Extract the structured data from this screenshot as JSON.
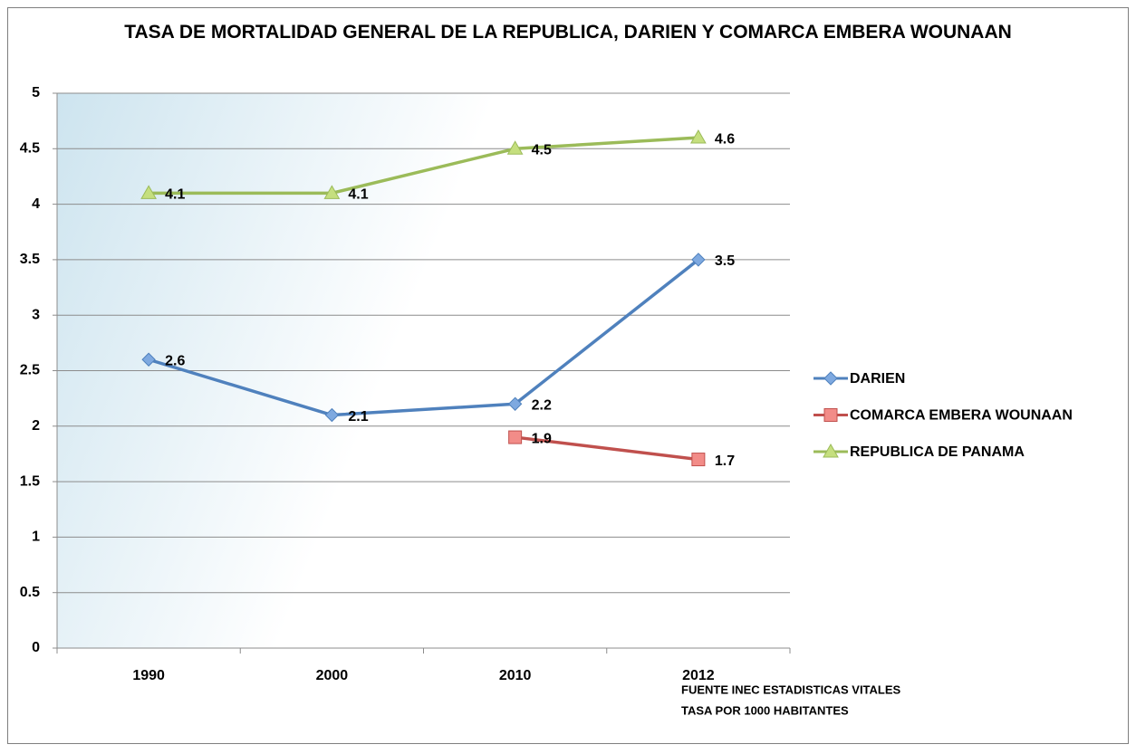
{
  "chart_data": {
    "type": "line",
    "title": "TASA DE MORTALIDAD GENERAL DE LA REPUBLICA, DARIEN Y COMARCA EMBERA WOUNAAN",
    "categories": [
      "1990",
      "2000",
      "2010",
      "2012"
    ],
    "series": [
      {
        "name": "DARIEN",
        "color": "#4f81bd",
        "marker_color": "#7ea9e0",
        "marker": "diamond",
        "values": [
          2.6,
          2.1,
          2.2,
          3.5
        ]
      },
      {
        "name": "COMARCA EMBERA WOUNAAN",
        "color": "#c0504d",
        "marker_color": "#f28c88",
        "marker": "square",
        "values": [
          null,
          null,
          1.9,
          1.7
        ]
      },
      {
        "name": "REPUBLICA DE PANAMA",
        "color": "#9bbb59",
        "marker_color": "#c5df7e",
        "marker": "triangle",
        "values": [
          4.1,
          4.1,
          4.5,
          4.6
        ]
      }
    ],
    "ylim": [
      0,
      5
    ],
    "yticks": [
      0,
      0.5,
      1,
      1.5,
      2,
      2.5,
      3,
      3.5,
      4,
      4.5,
      5
    ],
    "grid": true,
    "legend": "right",
    "annotations": [
      "FUENTE INEC ESTADISTICAS VITALES",
      "TASA POR 1000 HABITANTES"
    ]
  }
}
